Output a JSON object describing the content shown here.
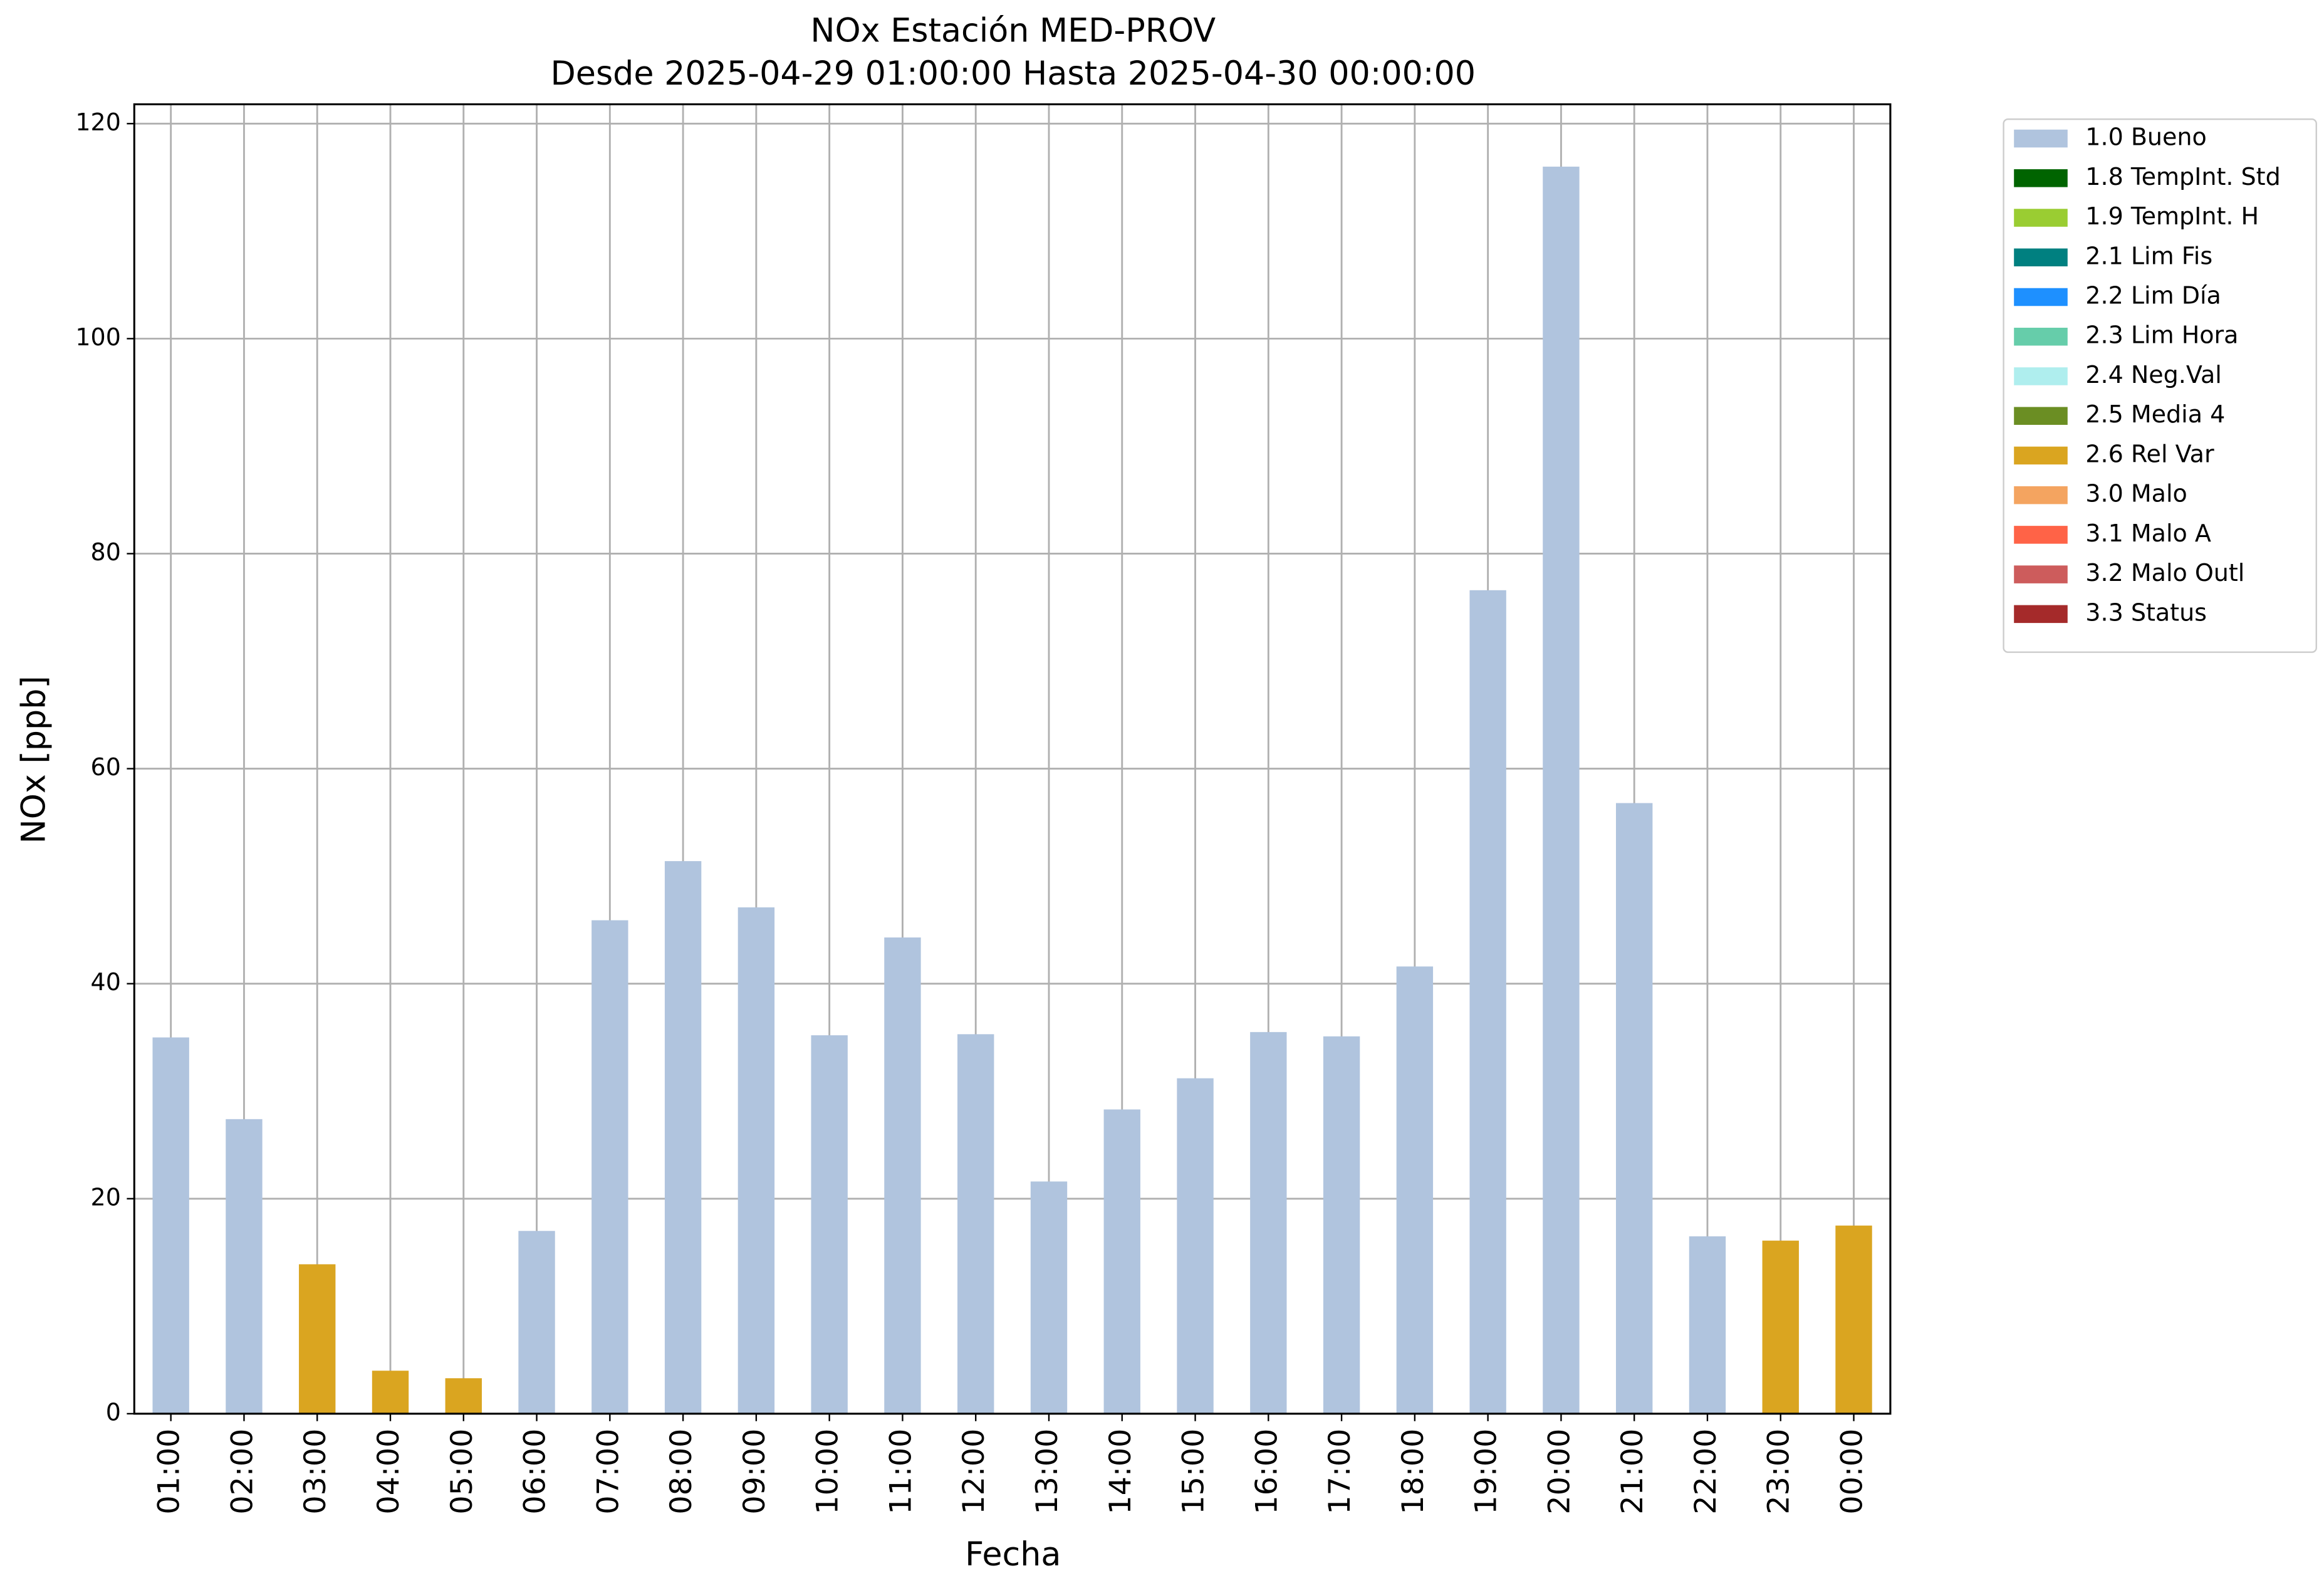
{
  "chart_data": {
    "type": "bar",
    "stacked": true,
    "title": "NOx Estación MED-PROV",
    "subtitle": "Desde 2025-04-29 01:00:00 Hasta 2025-04-30 00:00:00",
    "x_label": "Fecha",
    "y_label": "NOx [ppb]",
    "categories": [
      "01:00",
      "02:00",
      "03:00",
      "04:00",
      "05:00",
      "06:00",
      "07:00",
      "08:00",
      "09:00",
      "10:00",
      "11:00",
      "12:00",
      "13:00",
      "14:00",
      "15:00",
      "16:00",
      "17:00",
      "18:00",
      "19:00",
      "20:00",
      "21:00",
      "22:00",
      "23:00",
      "00:00"
    ],
    "series": [
      {
        "name": "1.0 Bueno",
        "color": "#b0c4de",
        "values": [
          35,
          27.4,
          null,
          null,
          null,
          17,
          45.9,
          51.4,
          47.1,
          35.2,
          44.3,
          35.3,
          21.6,
          28.3,
          31.2,
          35.5,
          35.1,
          41.6,
          76.6,
          116,
          56.8,
          16.5,
          null,
          null
        ]
      },
      {
        "name": "1.8 TempInt. Std",
        "color": "#006400",
        "values": [
          null,
          null,
          null,
          null,
          null,
          null,
          null,
          null,
          null,
          null,
          null,
          null,
          null,
          null,
          null,
          null,
          null,
          null,
          null,
          null,
          null,
          null,
          null,
          null
        ]
      },
      {
        "name": "1.9 TempInt. H",
        "color": "#9acd32",
        "values": [
          null,
          null,
          null,
          null,
          null,
          null,
          null,
          null,
          null,
          null,
          null,
          null,
          null,
          null,
          null,
          null,
          null,
          null,
          null,
          null,
          null,
          null,
          null,
          null
        ]
      },
      {
        "name": "2.1 Lim Fis",
        "color": "#008080",
        "values": [
          null,
          null,
          null,
          null,
          null,
          null,
          null,
          null,
          null,
          null,
          null,
          null,
          null,
          null,
          null,
          null,
          null,
          null,
          null,
          null,
          null,
          null,
          null,
          null
        ]
      },
      {
        "name": "2.2 Lim Día",
        "color": "#1e90ff",
        "values": [
          null,
          null,
          null,
          null,
          null,
          null,
          null,
          null,
          null,
          null,
          null,
          null,
          null,
          null,
          null,
          null,
          null,
          null,
          null,
          null,
          null,
          null,
          null,
          null
        ]
      },
      {
        "name": "2.3 Lim Hora",
        "color": "#66cdaa",
        "values": [
          null,
          null,
          null,
          null,
          null,
          null,
          null,
          null,
          null,
          null,
          null,
          null,
          null,
          null,
          null,
          null,
          null,
          null,
          null,
          null,
          null,
          null,
          null,
          null
        ]
      },
      {
        "name": "2.4 Neg.Val",
        "color": "#afeeee",
        "values": [
          null,
          null,
          null,
          null,
          null,
          null,
          null,
          null,
          null,
          null,
          null,
          null,
          null,
          null,
          null,
          null,
          null,
          null,
          null,
          null,
          null,
          null,
          null,
          null
        ]
      },
      {
        "name": "2.5 Media 4",
        "color": "#6b8e23",
        "values": [
          null,
          null,
          null,
          null,
          null,
          null,
          null,
          null,
          null,
          null,
          null,
          null,
          null,
          null,
          null,
          null,
          null,
          null,
          null,
          null,
          null,
          null,
          null,
          null
        ]
      },
      {
        "name": "2.6 Rel Var",
        "color": "#daa520",
        "values": [
          null,
          null,
          13.9,
          4,
          3.3,
          null,
          null,
          null,
          null,
          null,
          null,
          null,
          null,
          null,
          null,
          null,
          null,
          null,
          null,
          null,
          null,
          null,
          16.1,
          17.5
        ]
      },
      {
        "name": "3.0 Malo",
        "color": "#f4a460",
        "values": [
          null,
          null,
          null,
          null,
          null,
          null,
          null,
          null,
          null,
          null,
          null,
          null,
          null,
          null,
          null,
          null,
          null,
          null,
          null,
          null,
          null,
          null,
          null,
          null
        ]
      },
      {
        "name": "3.1 Malo A",
        "color": "#ff6347",
        "values": [
          null,
          null,
          null,
          null,
          null,
          null,
          null,
          null,
          null,
          null,
          null,
          null,
          null,
          null,
          null,
          null,
          null,
          null,
          null,
          null,
          null,
          null,
          null,
          null
        ]
      },
      {
        "name": "3.2 Malo Outl",
        "color": "#cd5c5c",
        "values": [
          null,
          null,
          null,
          null,
          null,
          null,
          null,
          null,
          null,
          null,
          null,
          null,
          null,
          null,
          null,
          null,
          null,
          null,
          null,
          null,
          null,
          null,
          null,
          null
        ]
      },
      {
        "name": "3.3 Status",
        "color": "#a52a2a",
        "values": [
          null,
          null,
          null,
          null,
          null,
          null,
          null,
          null,
          null,
          null,
          null,
          null,
          null,
          null,
          null,
          null,
          null,
          null,
          null,
          null,
          null,
          null,
          null,
          null
        ]
      }
    ],
    "ylim": [
      0,
      121.8
    ],
    "yticks": [
      0,
      20,
      40,
      60,
      80,
      100,
      120
    ],
    "grid": true,
    "legend": "outside-right"
  }
}
